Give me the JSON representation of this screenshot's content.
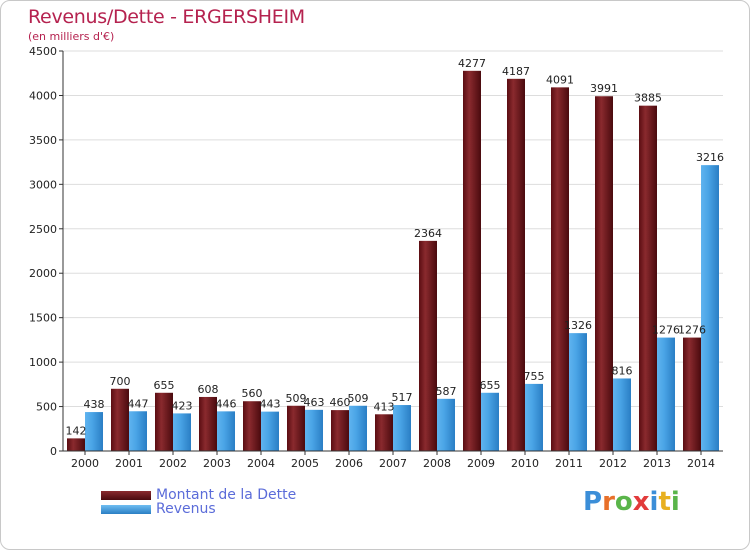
{
  "header": {
    "title": "Revenus/Dette - ERGERSHEIM",
    "subtitle": "(en milliers d'€)"
  },
  "logo": {
    "text": "Proxiti",
    "letters": [
      "P",
      "r",
      "o",
      "x",
      "i",
      "t",
      "i"
    ],
    "colors": [
      "#3b8ed8",
      "#e8702a",
      "#5ab54a",
      "#e23b3b",
      "#3b8ed8",
      "#e8b020",
      "#5ab54a"
    ]
  },
  "colors": {
    "dette": "#7a1a1e",
    "revenus": "#3d9be0",
    "grid": "#dddddd",
    "axis": "#333333"
  },
  "chart_data": {
    "type": "bar",
    "categories": [
      "2000",
      "2001",
      "2002",
      "2003",
      "2004",
      "2005",
      "2006",
      "2007",
      "2008",
      "2009",
      "2010",
      "2011",
      "2012",
      "2013",
      "2014"
    ],
    "series": [
      {
        "name": "Montant de la Dette",
        "values": [
          142,
          700,
          655,
          608,
          560,
          509,
          460,
          413,
          2364,
          4277,
          4187,
          4091,
          3991,
          3885,
          1276
        ]
      },
      {
        "name": "Revenus",
        "values": [
          438,
          447,
          423,
          446,
          443,
          463,
          509,
          517,
          587,
          655,
          755,
          1326,
          816,
          1276,
          3216
        ]
      }
    ],
    "data_labels": [
      [
        "142",
        "700",
        "655",
        "608",
        "560",
        "509",
        "460",
        "413",
        "2364",
        "4277",
        "4187",
        "4091",
        "3991",
        "3885",
        "1276"
      ],
      [
        "438",
        "447",
        "423",
        "446",
        "443",
        "463",
        "509",
        "517",
        "587",
        "655",
        "755",
        "1326",
        "816",
        "1276",
        "3216"
      ]
    ],
    "yticks": [
      "0",
      "500",
      "1000",
      "1500",
      "2000",
      "2500",
      "3000",
      "3500",
      "4000",
      "4500"
    ],
    "ylim": [
      0,
      4500
    ],
    "grid": true,
    "legend": "bottom-left"
  }
}
